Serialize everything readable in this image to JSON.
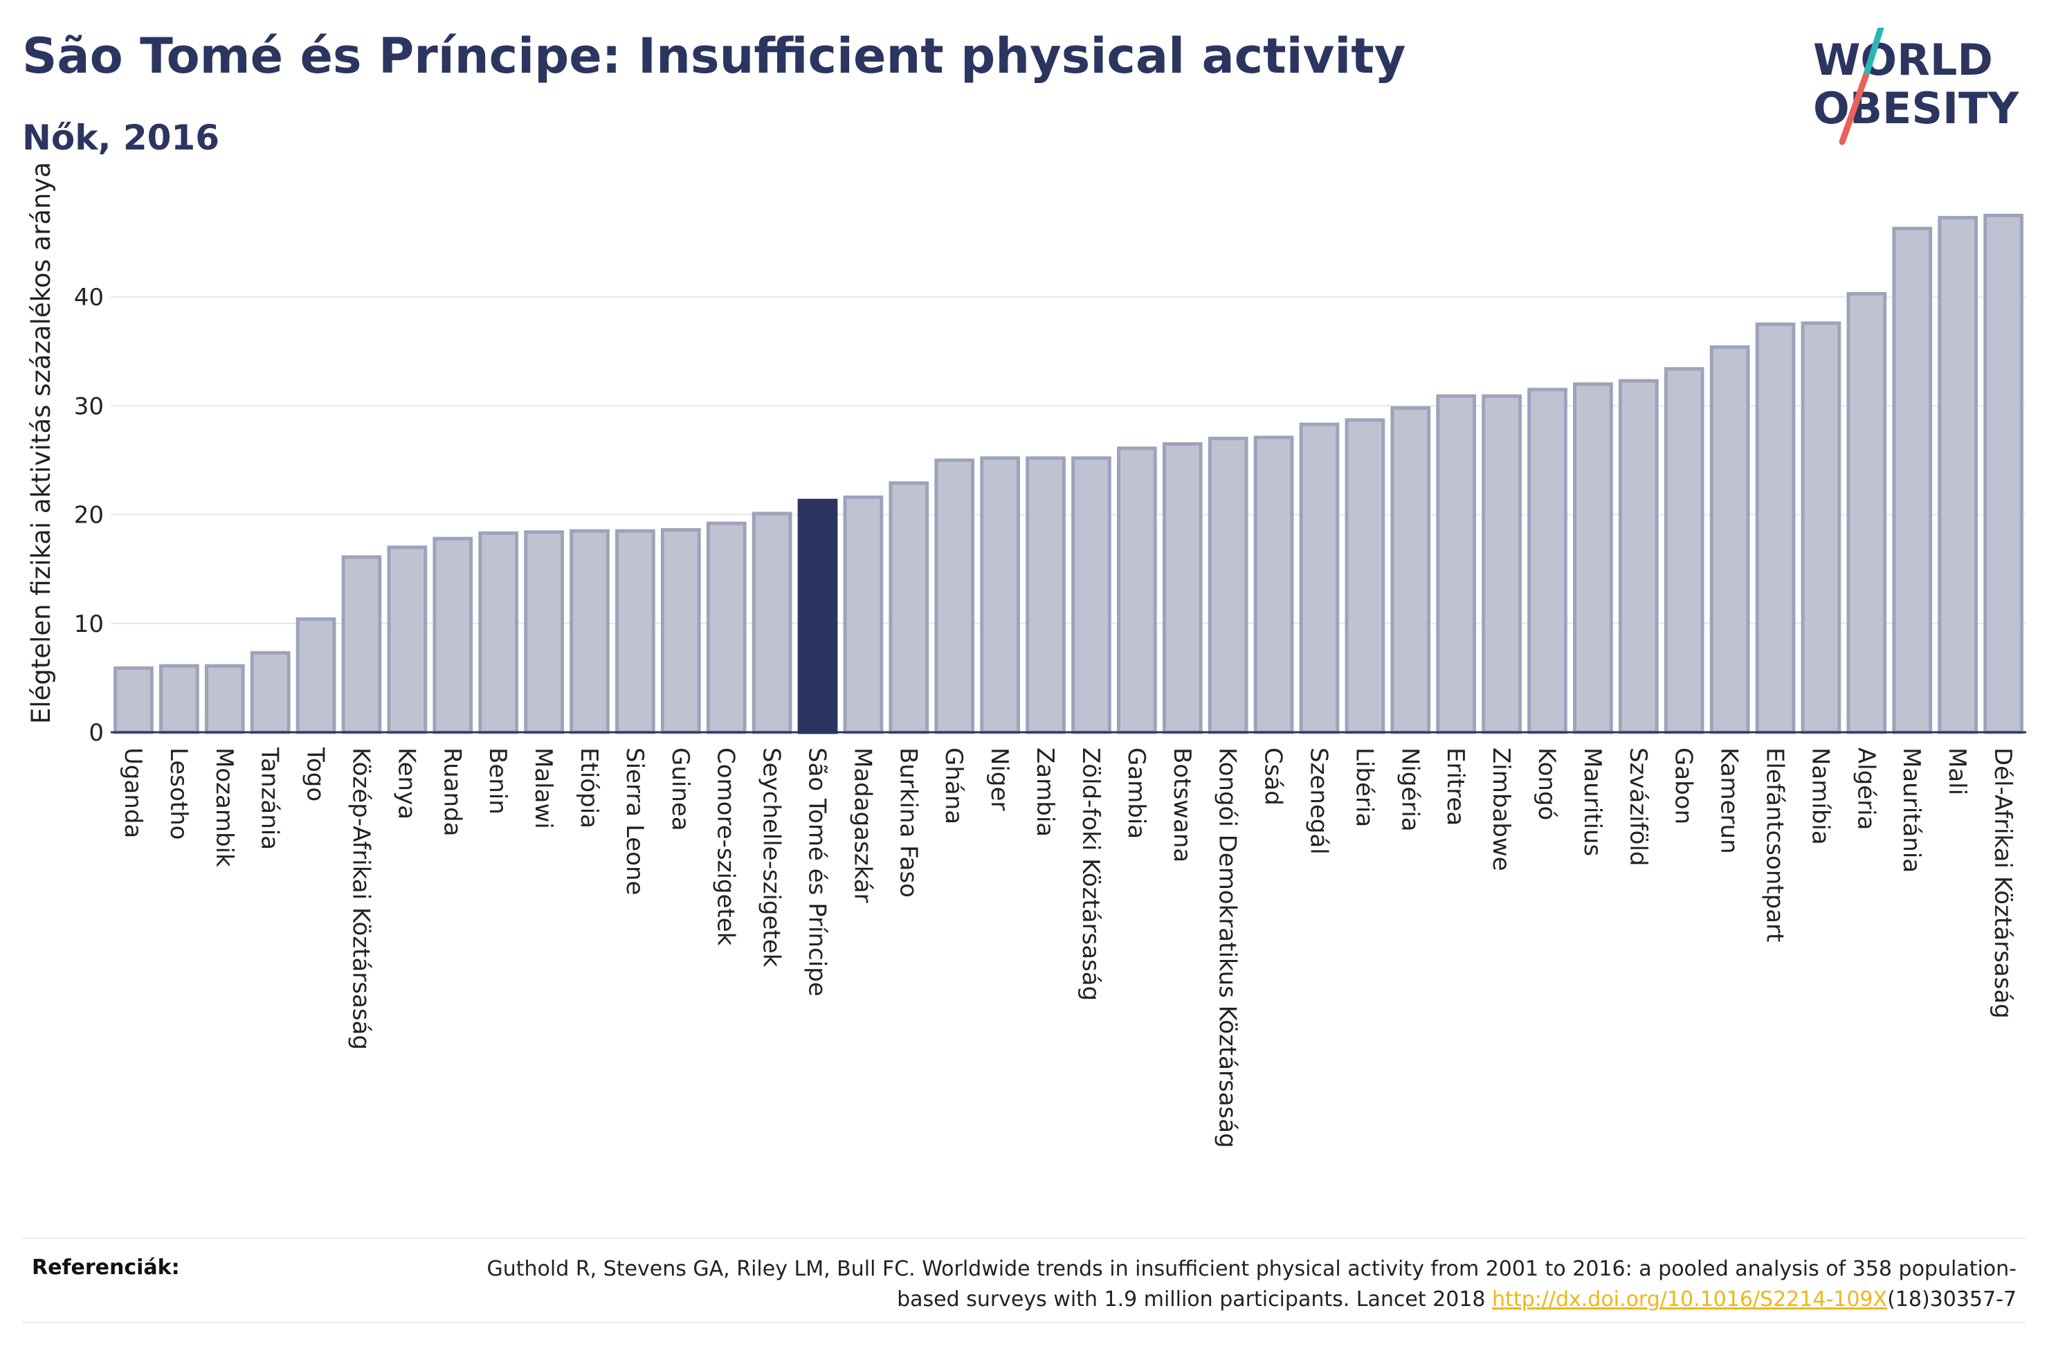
{
  "header": {
    "title": "São Tomé és Príncipe: Insufficient physical activity",
    "subtitle": "Nők, 2016"
  },
  "logo": {
    "line1": "WORLD",
    "line2": "OBESITY",
    "colors": {
      "text": "#2b3560",
      "slash_top": "#2bb7b3",
      "slash_bottom": "#e8615a"
    }
  },
  "colors": {
    "bar_fill": "#bfc3d1",
    "bar_stroke": "#9ea3bb",
    "highlight_fill": "#2b3560",
    "gridline": "#e6e6e6",
    "axis": "#2b3560"
  },
  "chart_data": {
    "type": "bar",
    "title": "São Tomé és Príncipe: Insufficient physical activity",
    "subtitle": "Nők, 2016",
    "xlabel": "",
    "ylabel": "Elégtelen fizikai aktivitás százalékos aránya",
    "ylim": [
      0,
      50
    ],
    "yticks": [
      0,
      10,
      20,
      30,
      40
    ],
    "grid": true,
    "highlight": "São Tomé és Príncipe",
    "categories": [
      "Uganda",
      "Lesotho",
      "Mozambik",
      "Tanzánia",
      "Togo",
      "Közép-Afrikai Köztársaság",
      "Kenya",
      "Ruanda",
      "Benin",
      "Malawi",
      "Etiópia",
      "Sierra Leone",
      "Guinea",
      "Comore-szigetek",
      "Seychelle-szigetek",
      "São Tomé és Príncipe",
      "Madagaszkár",
      "Burkina Faso",
      "Ghána",
      "Niger",
      "Zambia",
      "Zöld-foki Köztársaság",
      "Gambia",
      "Botswana",
      "Kongói Demokratikus Köztársaság",
      "Csád",
      "Szenegál",
      "Libéria",
      "Nigéria",
      "Eritrea",
      "Zimbabwe",
      "Kongó",
      "Mauritius",
      "Szváziföld",
      "Gabon",
      "Kamerun",
      "Elefántcsontpart",
      "Namíbia",
      "Algéria",
      "Mauritánia",
      "Mali",
      "Dél-Afrikai Köztársaság"
    ],
    "values": [
      5.9,
      6.1,
      6.1,
      7.3,
      10.4,
      16.1,
      17.0,
      17.8,
      18.3,
      18.4,
      18.5,
      18.5,
      18.6,
      19.2,
      20.1,
      21.3,
      21.6,
      22.9,
      25.0,
      25.2,
      25.2,
      25.2,
      26.1,
      26.5,
      27.0,
      27.1,
      28.3,
      28.7,
      29.8,
      30.9,
      30.9,
      31.5,
      32.0,
      32.3,
      33.4,
      35.4,
      37.5,
      37.6,
      40.3,
      46.3,
      47.3,
      47.5
    ]
  },
  "references": {
    "label": "Referenciák:",
    "text_before": "Guthold R, Stevens GA, Riley LM, Bull FC. Worldwide trends in insufficient physical activity from 2001 to 2016: a pooled analysis of 358 population-based surveys with 1.9 million participants. Lancet 2018 ",
    "link_text": "http://dx.doi.org/10.1016/S2214-109X",
    "text_after": "(18)30357-7"
  }
}
